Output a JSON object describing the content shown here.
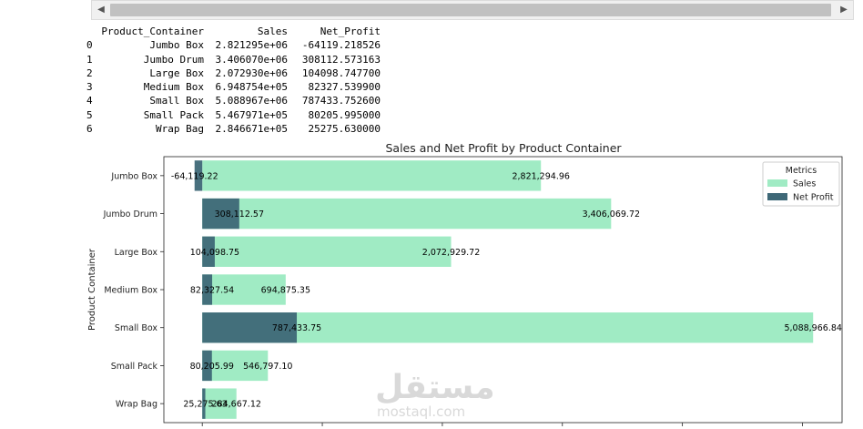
{
  "table": {
    "headers": [
      "",
      "Product_Container",
      "Sales",
      "Net_Profit"
    ],
    "rows": [
      [
        "0",
        "Jumbo Box",
        "2.821295e+06",
        "-64119.218526"
      ],
      [
        "1",
        "Jumbo Drum",
        "3.406070e+06",
        "308112.573163"
      ],
      [
        "2",
        "Large Box",
        "2.072930e+06",
        "104098.747700"
      ],
      [
        "3",
        "Medium Box",
        "6.948754e+05",
        "82327.539900"
      ],
      [
        "4",
        "Small Box",
        "5.088967e+06",
        "787433.752600"
      ],
      [
        "5",
        "Small Pack",
        "5.467971e+05",
        "80205.995000"
      ],
      [
        "6",
        "Wrap Bag",
        "2.846671e+05",
        "25275.630000"
      ]
    ]
  },
  "chart_data": {
    "type": "bar",
    "orientation": "horizontal",
    "title": "Sales and Net Profit by Product Container",
    "ylabel": "Product Container",
    "xlabel": "",
    "categories": [
      "Jumbo Box",
      "Jumbo Drum",
      "Large Box",
      "Medium Box",
      "Small Box",
      "Small Pack",
      "Wrap Bag"
    ],
    "series": [
      {
        "name": "Sales",
        "color": "#a0ebc4",
        "values": [
          2821294.96,
          3406069.72,
          2072929.72,
          694875.35,
          5088966.84,
          546797.1,
          284667.12
        ],
        "labels": [
          "2,821,294.96",
          "3,406,069.72",
          "2,072,929.72",
          "694,875.35",
          "5,088,966.84",
          "546,797.10",
          "284,667.12"
        ]
      },
      {
        "name": "Net Profit",
        "color": "#3e6877",
        "values": [
          -64119.22,
          308112.57,
          104098.75,
          82327.54,
          787433.75,
          80205.99,
          25275.63
        ],
        "labels": [
          "-64,119.22",
          "308,112.57",
          "104,098.75",
          "82,327.54",
          "787,433.75",
          "80,205.99",
          "25,275.63"
        ]
      }
    ],
    "xlim": [
      -320000,
      5330000
    ],
    "legend": {
      "title": "Metrics",
      "position": "top-right"
    },
    "grid": false
  },
  "watermark": {
    "arabic": "مستقل",
    "latin": "mostaql.com"
  }
}
